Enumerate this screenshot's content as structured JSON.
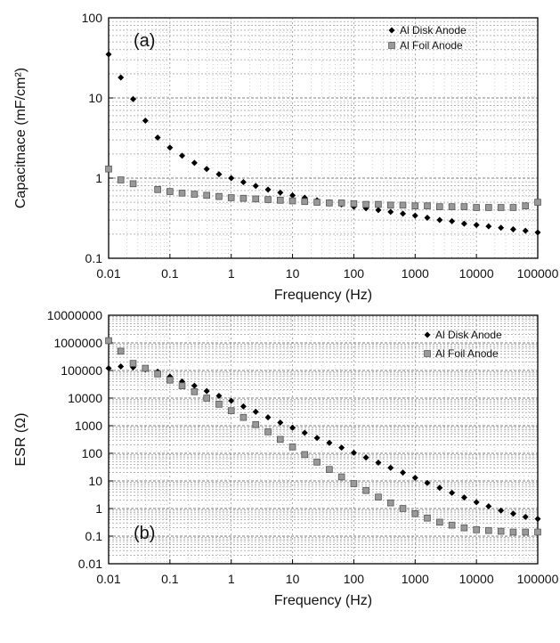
{
  "chart_data": [
    {
      "type": "scatter",
      "panel_label": "(a)",
      "xlabel": "Frequency (Hz)",
      "ylabel": "Capacitnace (mF/cm²)",
      "x_scale": "log",
      "y_scale": "log",
      "xlim": [
        0.01,
        100000
      ],
      "ylim": [
        0.1,
        100
      ],
      "x_ticks": [
        0.01,
        0.1,
        1,
        10,
        100,
        1000,
        10000,
        100000
      ],
      "x_tick_labels": [
        "0.01",
        "0.1",
        "1",
        "10",
        "100",
        "1000",
        "10000",
        "100000"
      ],
      "y_ticks": [
        0.1,
        1,
        10,
        100
      ],
      "y_tick_labels": [
        "0.1",
        "1",
        "10",
        "100"
      ],
      "grid": true,
      "legend_position": "top-right",
      "series": [
        {
          "name": "Al Disk Anode",
          "marker": "diamond",
          "color": "#000000",
          "points": [
            [
              0.01,
              35
            ],
            [
              0.0158,
              18
            ],
            [
              0.0251,
              9.7
            ],
            [
              0.0398,
              5.2
            ],
            [
              0.0631,
              3.2
            ],
            [
              0.1,
              2.4
            ],
            [
              0.158,
              1.9
            ],
            [
              0.251,
              1.55
            ],
            [
              0.398,
              1.3
            ],
            [
              0.631,
              1.12
            ],
            [
              1,
              1.0
            ],
            [
              1.58,
              0.89
            ],
            [
              2.51,
              0.8
            ],
            [
              3.98,
              0.72
            ],
            [
              6.31,
              0.66
            ],
            [
              10,
              0.61
            ],
            [
              15.8,
              0.57
            ],
            [
              25.1,
              0.53
            ],
            [
              39.8,
              0.5
            ],
            [
              63.1,
              0.47
            ],
            [
              100,
              0.44
            ],
            [
              158,
              0.42
            ],
            [
              251,
              0.4
            ],
            [
              398,
              0.38
            ],
            [
              631,
              0.36
            ],
            [
              1000,
              0.34
            ],
            [
              1580,
              0.32
            ],
            [
              2510,
              0.3
            ],
            [
              3980,
              0.29
            ],
            [
              6310,
              0.27
            ],
            [
              10000,
              0.26
            ],
            [
              15800,
              0.25
            ],
            [
              25100,
              0.24
            ],
            [
              39800,
              0.23
            ],
            [
              63100,
              0.22
            ],
            [
              100000,
              0.21
            ]
          ]
        },
        {
          "name": "Al Foil Anode",
          "marker": "square",
          "color": "#999999",
          "points": [
            [
              0.01,
              1.3
            ],
            [
              0.0158,
              0.95
            ],
            [
              0.0251,
              0.85
            ],
            [
              0.0631,
              0.72
            ],
            [
              0.1,
              0.68
            ],
            [
              0.158,
              0.65
            ],
            [
              0.251,
              0.63
            ],
            [
              0.398,
              0.61
            ],
            [
              0.631,
              0.59
            ],
            [
              1,
              0.57
            ],
            [
              1.58,
              0.56
            ],
            [
              2.51,
              0.55
            ],
            [
              3.98,
              0.54
            ],
            [
              6.31,
              0.53
            ],
            [
              10,
              0.52
            ],
            [
              15.8,
              0.51
            ],
            [
              25.1,
              0.5
            ],
            [
              39.8,
              0.49
            ],
            [
              63.1,
              0.49
            ],
            [
              100,
              0.48
            ],
            [
              158,
              0.47
            ],
            [
              251,
              0.47
            ],
            [
              398,
              0.46
            ],
            [
              631,
              0.46
            ],
            [
              1000,
              0.45
            ],
            [
              1580,
              0.45
            ],
            [
              2510,
              0.44
            ],
            [
              3980,
              0.44
            ],
            [
              6310,
              0.44
            ],
            [
              10000,
              0.43
            ],
            [
              15800,
              0.43
            ],
            [
              25100,
              0.43
            ],
            [
              39800,
              0.43
            ],
            [
              63100,
              0.45
            ],
            [
              100000,
              0.5
            ]
          ]
        }
      ]
    },
    {
      "type": "scatter",
      "panel_label": "(b)",
      "xlabel": "Frequency (Hz)",
      "ylabel": "ESR (Ω)",
      "x_scale": "log",
      "y_scale": "log",
      "xlim": [
        0.01,
        100000
      ],
      "ylim": [
        0.01,
        10000000
      ],
      "x_ticks": [
        0.01,
        0.1,
        1,
        10,
        100,
        1000,
        10000,
        100000
      ],
      "x_tick_labels": [
        "0.01",
        "0.1",
        "1",
        "10",
        "100",
        "1000",
        "10000",
        "100000"
      ],
      "y_ticks": [
        0.01,
        0.1,
        1,
        10,
        100,
        1000,
        10000,
        100000,
        1000000,
        10000000
      ],
      "y_tick_labels": [
        "0.01",
        "0.1",
        "1",
        "10",
        "100",
        "1000",
        "10000",
        "100000",
        "1000000",
        "10000000"
      ],
      "grid": true,
      "legend_position": "top-right",
      "series": [
        {
          "name": "Al Disk Anode",
          "marker": "diamond",
          "color": "#000000",
          "points": [
            [
              0.01,
              120000
            ],
            [
              0.0158,
              140000
            ],
            [
              0.0251,
              130000
            ],
            [
              0.0398,
              110000
            ],
            [
              0.0631,
              90000
            ],
            [
              0.1,
              60000
            ],
            [
              0.158,
              40000
            ],
            [
              0.251,
              28000
            ],
            [
              0.398,
              18000
            ],
            [
              0.631,
              12000
            ],
            [
              1,
              8000
            ],
            [
              1.58,
              5000
            ],
            [
              2.51,
              3200
            ],
            [
              3.98,
              2000
            ],
            [
              6.31,
              1300
            ],
            [
              10,
              850
            ],
            [
              15.8,
              550
            ],
            [
              25.1,
              360
            ],
            [
              39.8,
              240
            ],
            [
              63.1,
              160
            ],
            [
              100,
              105
            ],
            [
              158,
              70
            ],
            [
              251,
              46
            ],
            [
              398,
              30
            ],
            [
              631,
              20
            ],
            [
              1000,
              13
            ],
            [
              1580,
              8.5
            ],
            [
              2510,
              5.6
            ],
            [
              3980,
              3.7
            ],
            [
              6310,
              2.5
            ],
            [
              10000,
              1.7
            ],
            [
              15800,
              1.2
            ],
            [
              25100,
              0.85
            ],
            [
              39800,
              0.65
            ],
            [
              63100,
              0.5
            ],
            [
              100000,
              0.42
            ]
          ]
        },
        {
          "name": "Al Foil Anode",
          "marker": "square",
          "color": "#999999",
          "points": [
            [
              0.01,
              1200000
            ],
            [
              0.0158,
              500000
            ],
            [
              0.0251,
              180000
            ],
            [
              0.0398,
              120000
            ],
            [
              0.0631,
              75000
            ],
            [
              0.1,
              45000
            ],
            [
              0.158,
              28000
            ],
            [
              0.251,
              17000
            ],
            [
              0.398,
              10000
            ],
            [
              0.631,
              6000
            ],
            [
              1,
              3500
            ],
            [
              1.58,
              2000
            ],
            [
              2.51,
              1100
            ],
            [
              3.98,
              600
            ],
            [
              6.31,
              320
            ],
            [
              10,
              170
            ],
            [
              15.8,
              90
            ],
            [
              25.1,
              48
            ],
            [
              39.8,
              26
            ],
            [
              63.1,
              14
            ],
            [
              100,
              8
            ],
            [
              158,
              4.5
            ],
            [
              251,
              2.6
            ],
            [
              398,
              1.6
            ],
            [
              631,
              1.0
            ],
            [
              1000,
              0.65
            ],
            [
              1580,
              0.45
            ],
            [
              2510,
              0.32
            ],
            [
              3980,
              0.25
            ],
            [
              6310,
              0.2
            ],
            [
              10000,
              0.17
            ],
            [
              15800,
              0.16
            ],
            [
              25100,
              0.15
            ],
            [
              39800,
              0.14
            ],
            [
              63100,
              0.14
            ],
            [
              100000,
              0.14
            ]
          ]
        }
      ]
    }
  ]
}
